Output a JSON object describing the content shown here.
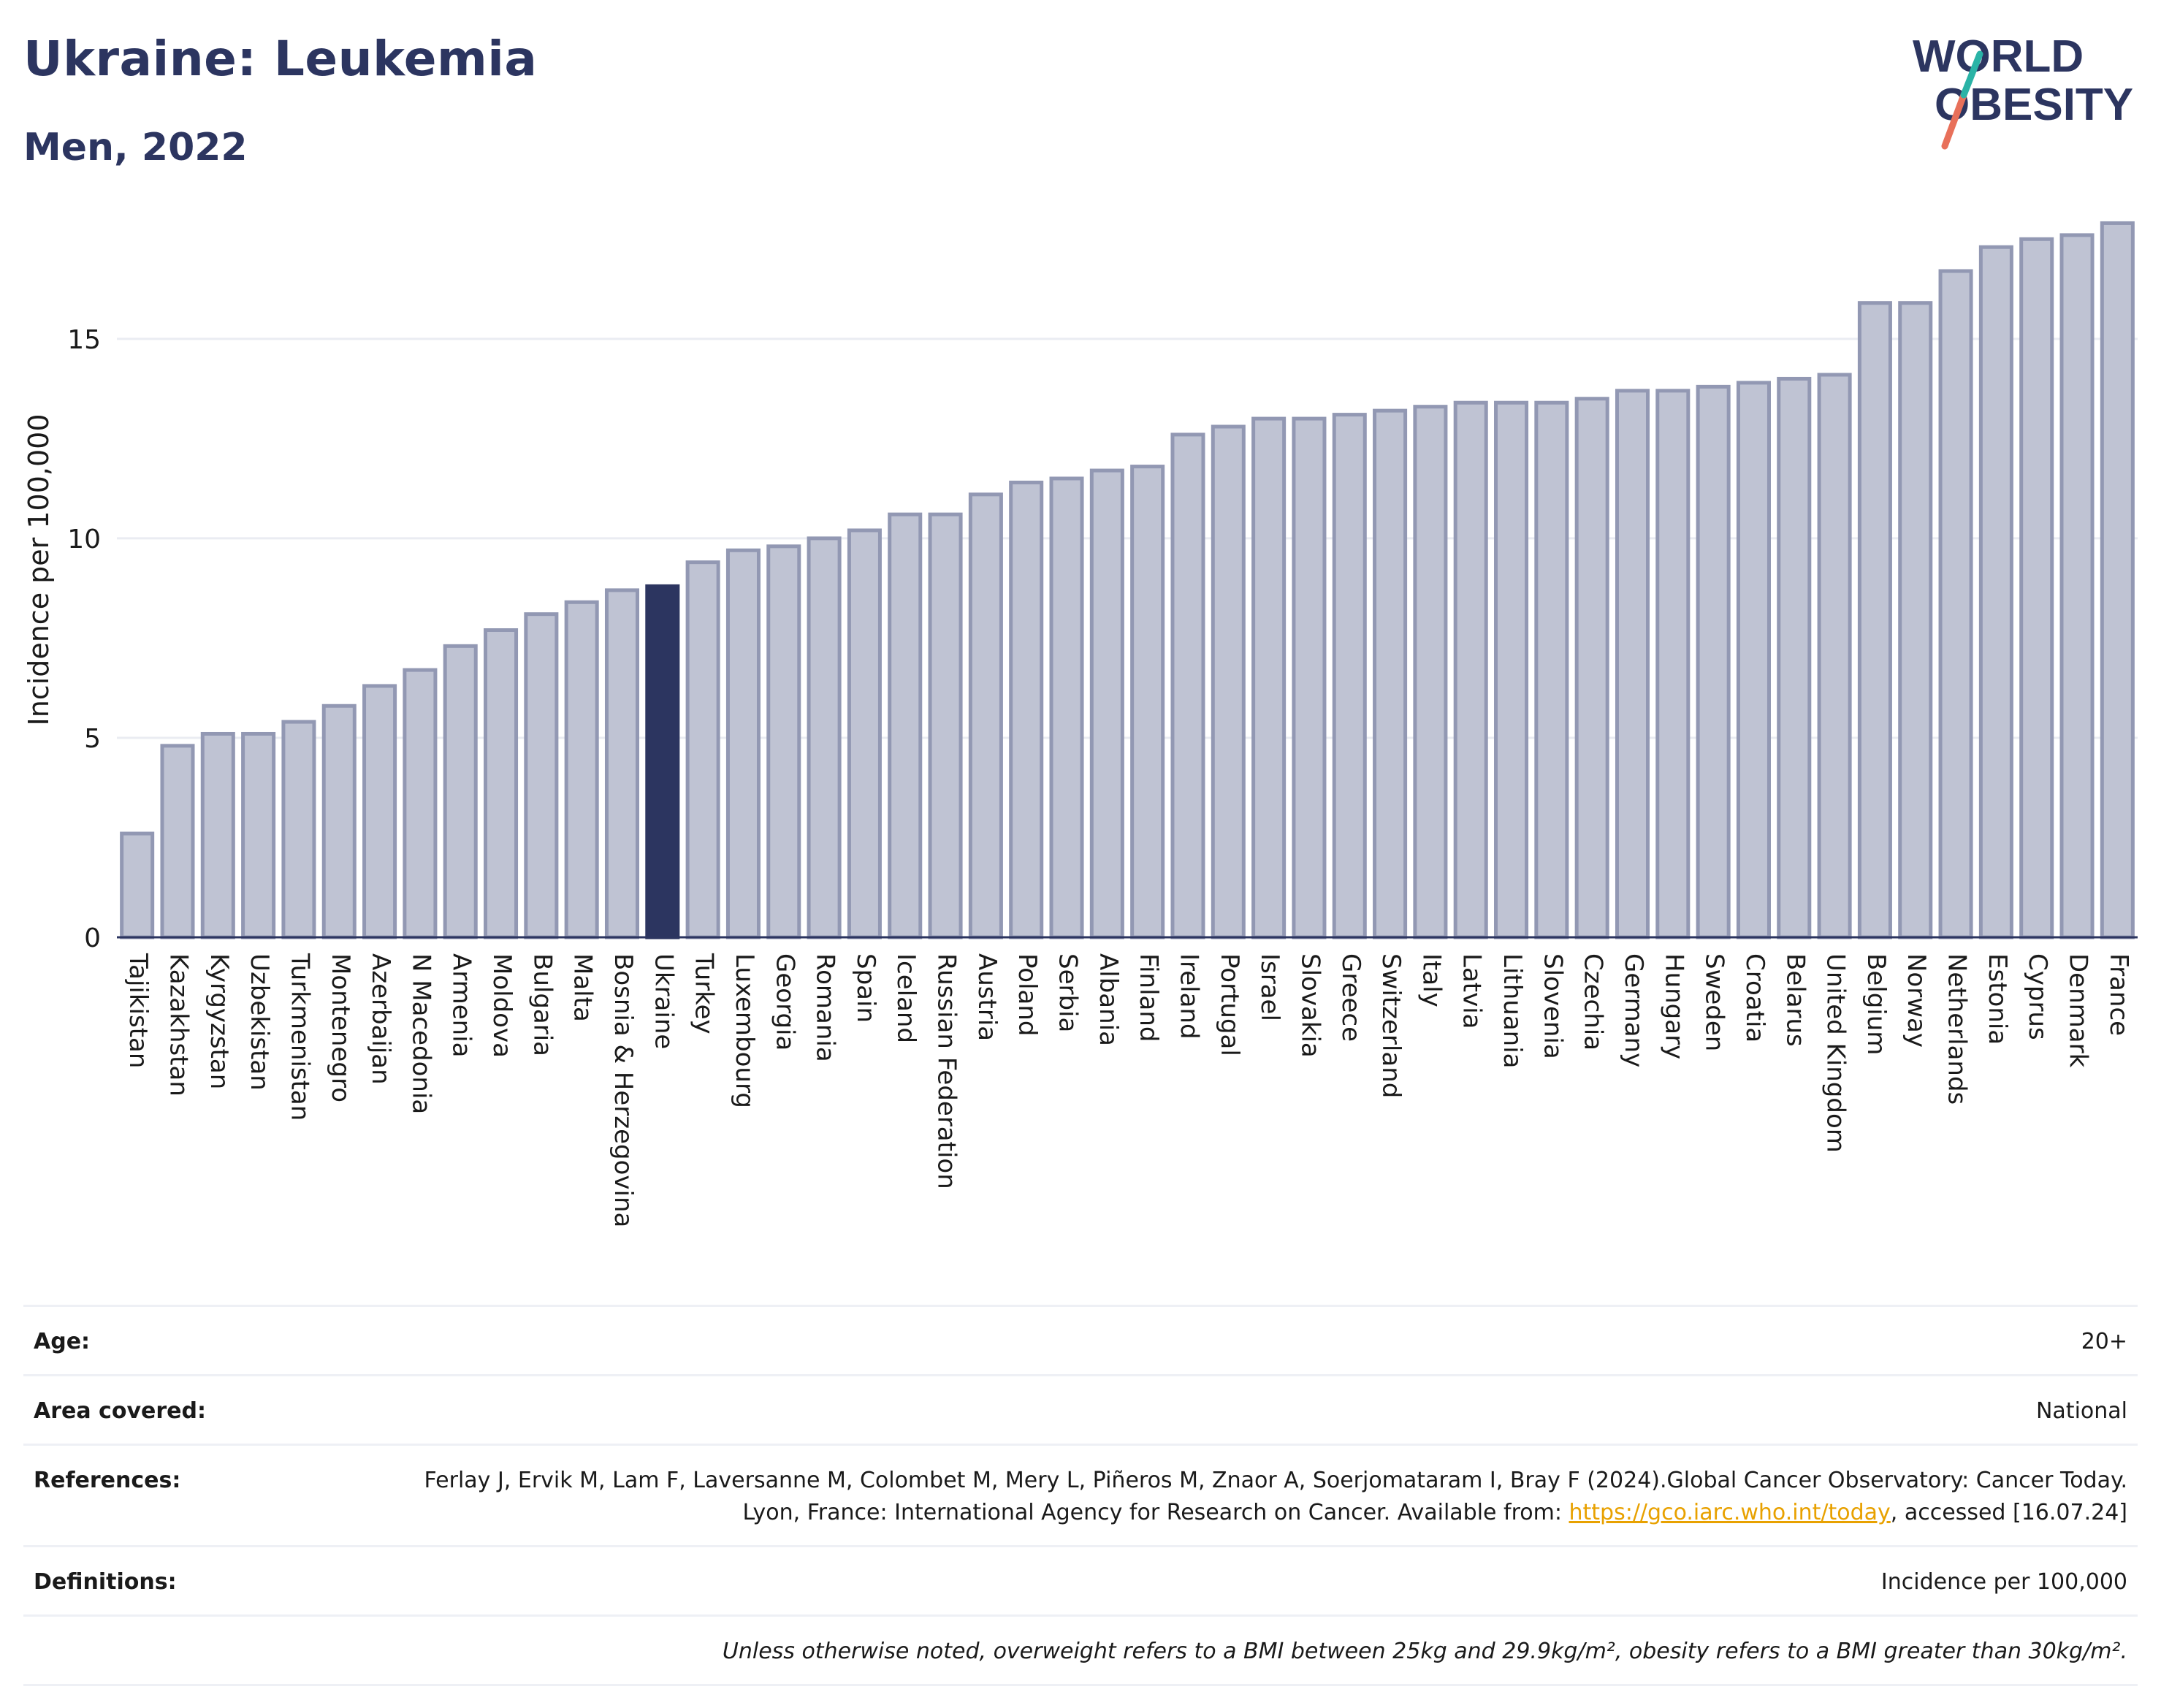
{
  "header": {
    "title": "Ukraine: Leukemia",
    "subtitle": "Men, 2022",
    "logo_line1": "WORLD",
    "logo_line2": "OBESITY"
  },
  "colors": {
    "title": "#2c3560",
    "bar": "#bfc3d3",
    "bar_stroke": "#9298b3",
    "highlight": "#2c3560",
    "logo_teal": "#2ab3a6",
    "logo_coral": "#e8705a",
    "link": "#e8a100"
  },
  "chart_data": {
    "type": "bar",
    "title": "Ukraine: Leukemia",
    "subtitle": "Men, 2022",
    "ylabel": "Incidence per 100,000",
    "xlabel": "",
    "ylim": [
      0,
      18
    ],
    "yticks": [
      0,
      5,
      10,
      15
    ],
    "grid": true,
    "highlight": "Ukraine",
    "categories": [
      "Tajikistan",
      "Kazakhstan",
      "Kyrgyzstan",
      "Uzbekistan",
      "Turkmenistan",
      "Montenegro",
      "Azerbaijan",
      "N Macedonia",
      "Armenia",
      "Moldova",
      "Bulgaria",
      "Malta",
      "Bosnia & Herzegovina",
      "Ukraine",
      "Turkey",
      "Luxembourg",
      "Georgia",
      "Romania",
      "Spain",
      "Iceland",
      "Russian Federation",
      "Austria",
      "Poland",
      "Serbia",
      "Albania",
      "Finland",
      "Ireland",
      "Portugal",
      "Israel",
      "Slovakia",
      "Greece",
      "Switzerland",
      "Italy",
      "Latvia",
      "Lithuania",
      "Slovenia",
      "Czechia",
      "Germany",
      "Hungary",
      "Sweden",
      "Croatia",
      "Belarus",
      "United Kingdom",
      "Belgium",
      "Norway",
      "Netherlands",
      "Estonia",
      "Cyprus",
      "Denmark",
      "France"
    ],
    "values": [
      2.6,
      4.8,
      5.1,
      5.1,
      5.4,
      5.8,
      6.3,
      6.7,
      7.3,
      7.7,
      8.1,
      8.4,
      8.7,
      8.8,
      9.4,
      9.7,
      9.8,
      10.0,
      10.2,
      10.6,
      10.6,
      11.1,
      11.4,
      11.5,
      11.7,
      11.8,
      12.6,
      12.8,
      13.0,
      13.0,
      13.1,
      13.2,
      13.3,
      13.4,
      13.4,
      13.4,
      13.5,
      13.7,
      13.7,
      13.8,
      13.9,
      14.0,
      14.1,
      15.9,
      15.9,
      16.7,
      17.3,
      17.5,
      17.6,
      17.9
    ]
  },
  "meta": {
    "age_label": "Age:",
    "age_value": "20+",
    "area_label": "Area covered:",
    "area_value": "National",
    "references_label": "References:",
    "references_text_1": "Ferlay J, Ervik M, Lam F, Laversanne M, Colombet M, Mery L, Piñeros M, Znaor A, Soerjomataram I, Bray F (2024).Global Cancer Observatory: Cancer Today. Lyon, France: International Agency for Research on Cancer. Available from: ",
    "references_link": "https://gco.iarc.who.int/today",
    "references_text_2": ", accessed [16.07.24]",
    "definitions_label": "Definitions:",
    "definitions_value": "Incidence per 100,000",
    "note": "Unless otherwise noted, overweight refers to a BMI between 25kg and 29.9kg/m², obesity refers to a BMI greater than 30kg/m²."
  }
}
